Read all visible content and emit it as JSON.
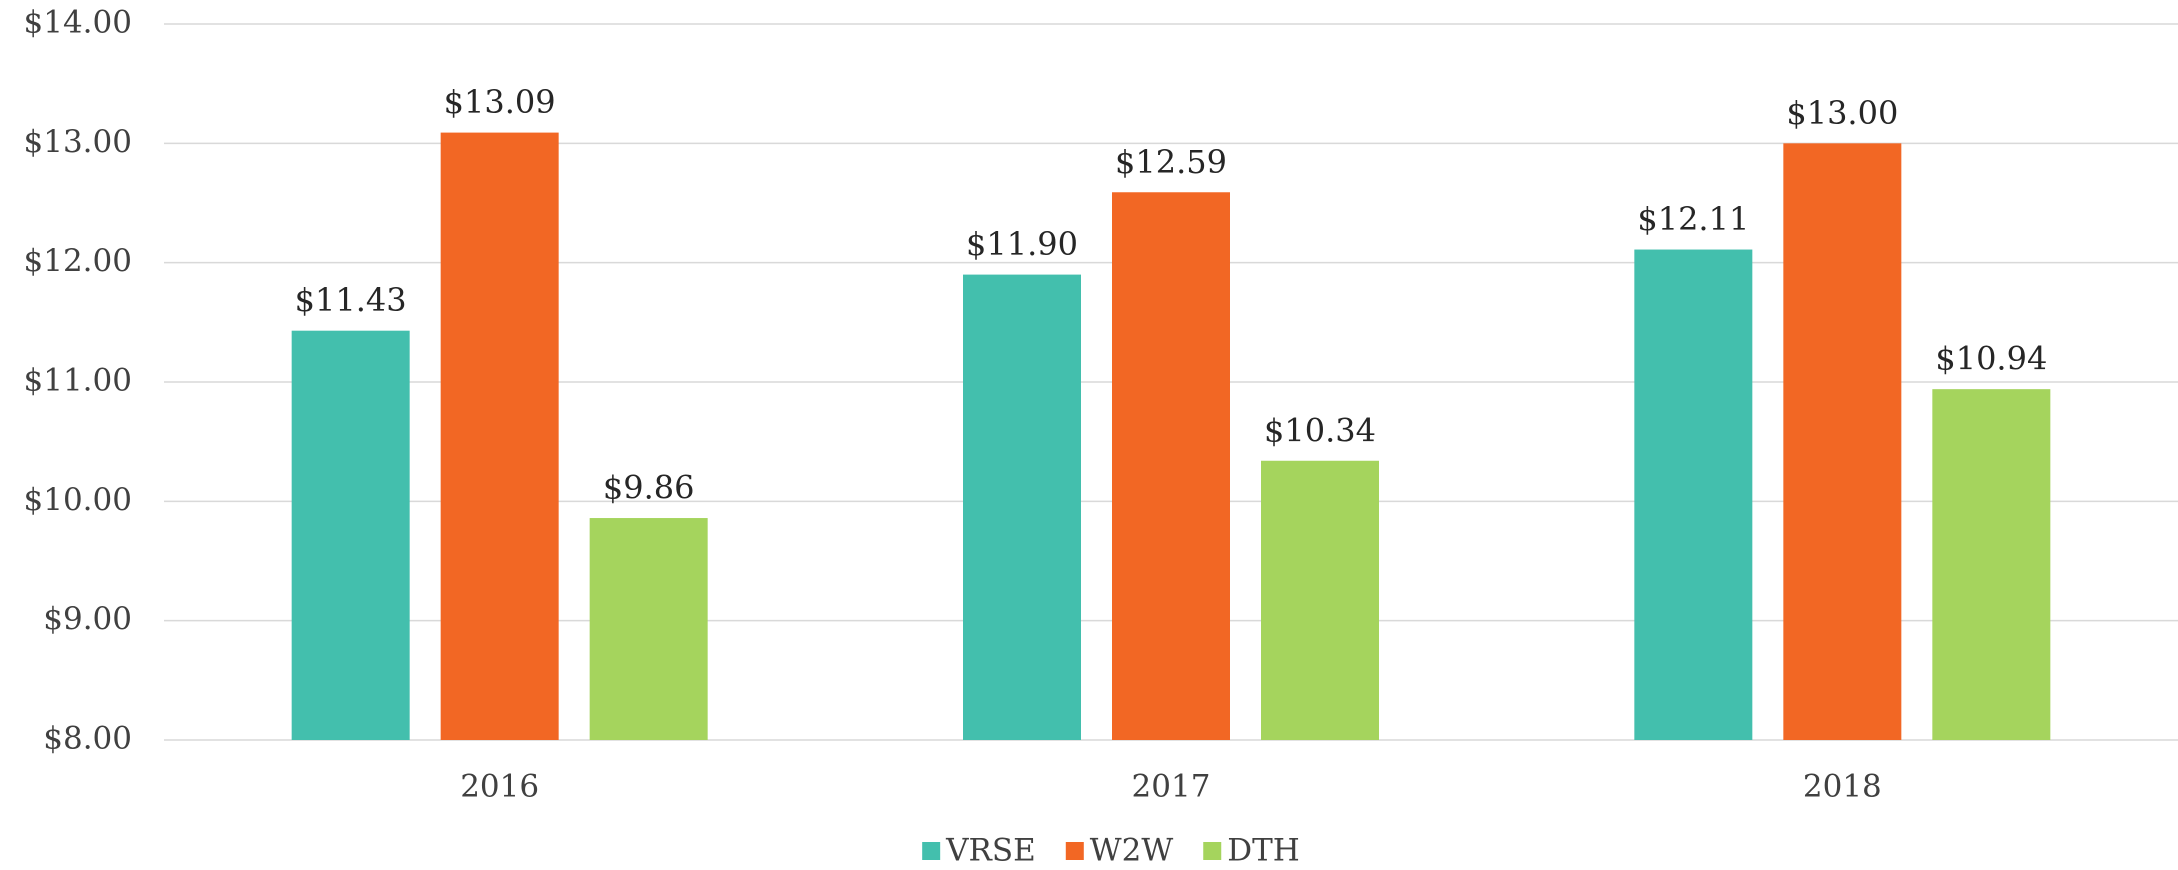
{
  "chart_data": {
    "type": "bar",
    "categories": [
      "2016",
      "2017",
      "2018"
    ],
    "series": [
      {
        "name": "VRSE",
        "color": "#43bfad",
        "values": [
          11.43,
          11.9,
          12.11
        ],
        "value_labels": [
          "$11.43",
          "$11.90",
          "$12.11"
        ]
      },
      {
        "name": "W2W",
        "color": "#f26724",
        "values": [
          13.09,
          12.59,
          13.0
        ],
        "value_labels": [
          "$13.09",
          "$12.59",
          "$13.00"
        ]
      },
      {
        "name": "DTH",
        "color": "#a5d45d",
        "values": [
          9.86,
          10.34,
          10.94
        ],
        "value_labels": [
          "$9.86",
          "$10.34",
          "$10.94"
        ]
      }
    ],
    "ylim": [
      8,
      14
    ],
    "yticks": [
      {
        "value": 8,
        "label": "$8.00"
      },
      {
        "value": 9,
        "label": "$9.00"
      },
      {
        "value": 10,
        "label": "$10.00"
      },
      {
        "value": 11,
        "label": "$11.00"
      },
      {
        "value": 12,
        "label": "$12.00"
      },
      {
        "value": 13,
        "label": "$13.00"
      },
      {
        "value": 14,
        "label": "$14.00"
      }
    ],
    "grid": true,
    "legend": "bottom"
  }
}
